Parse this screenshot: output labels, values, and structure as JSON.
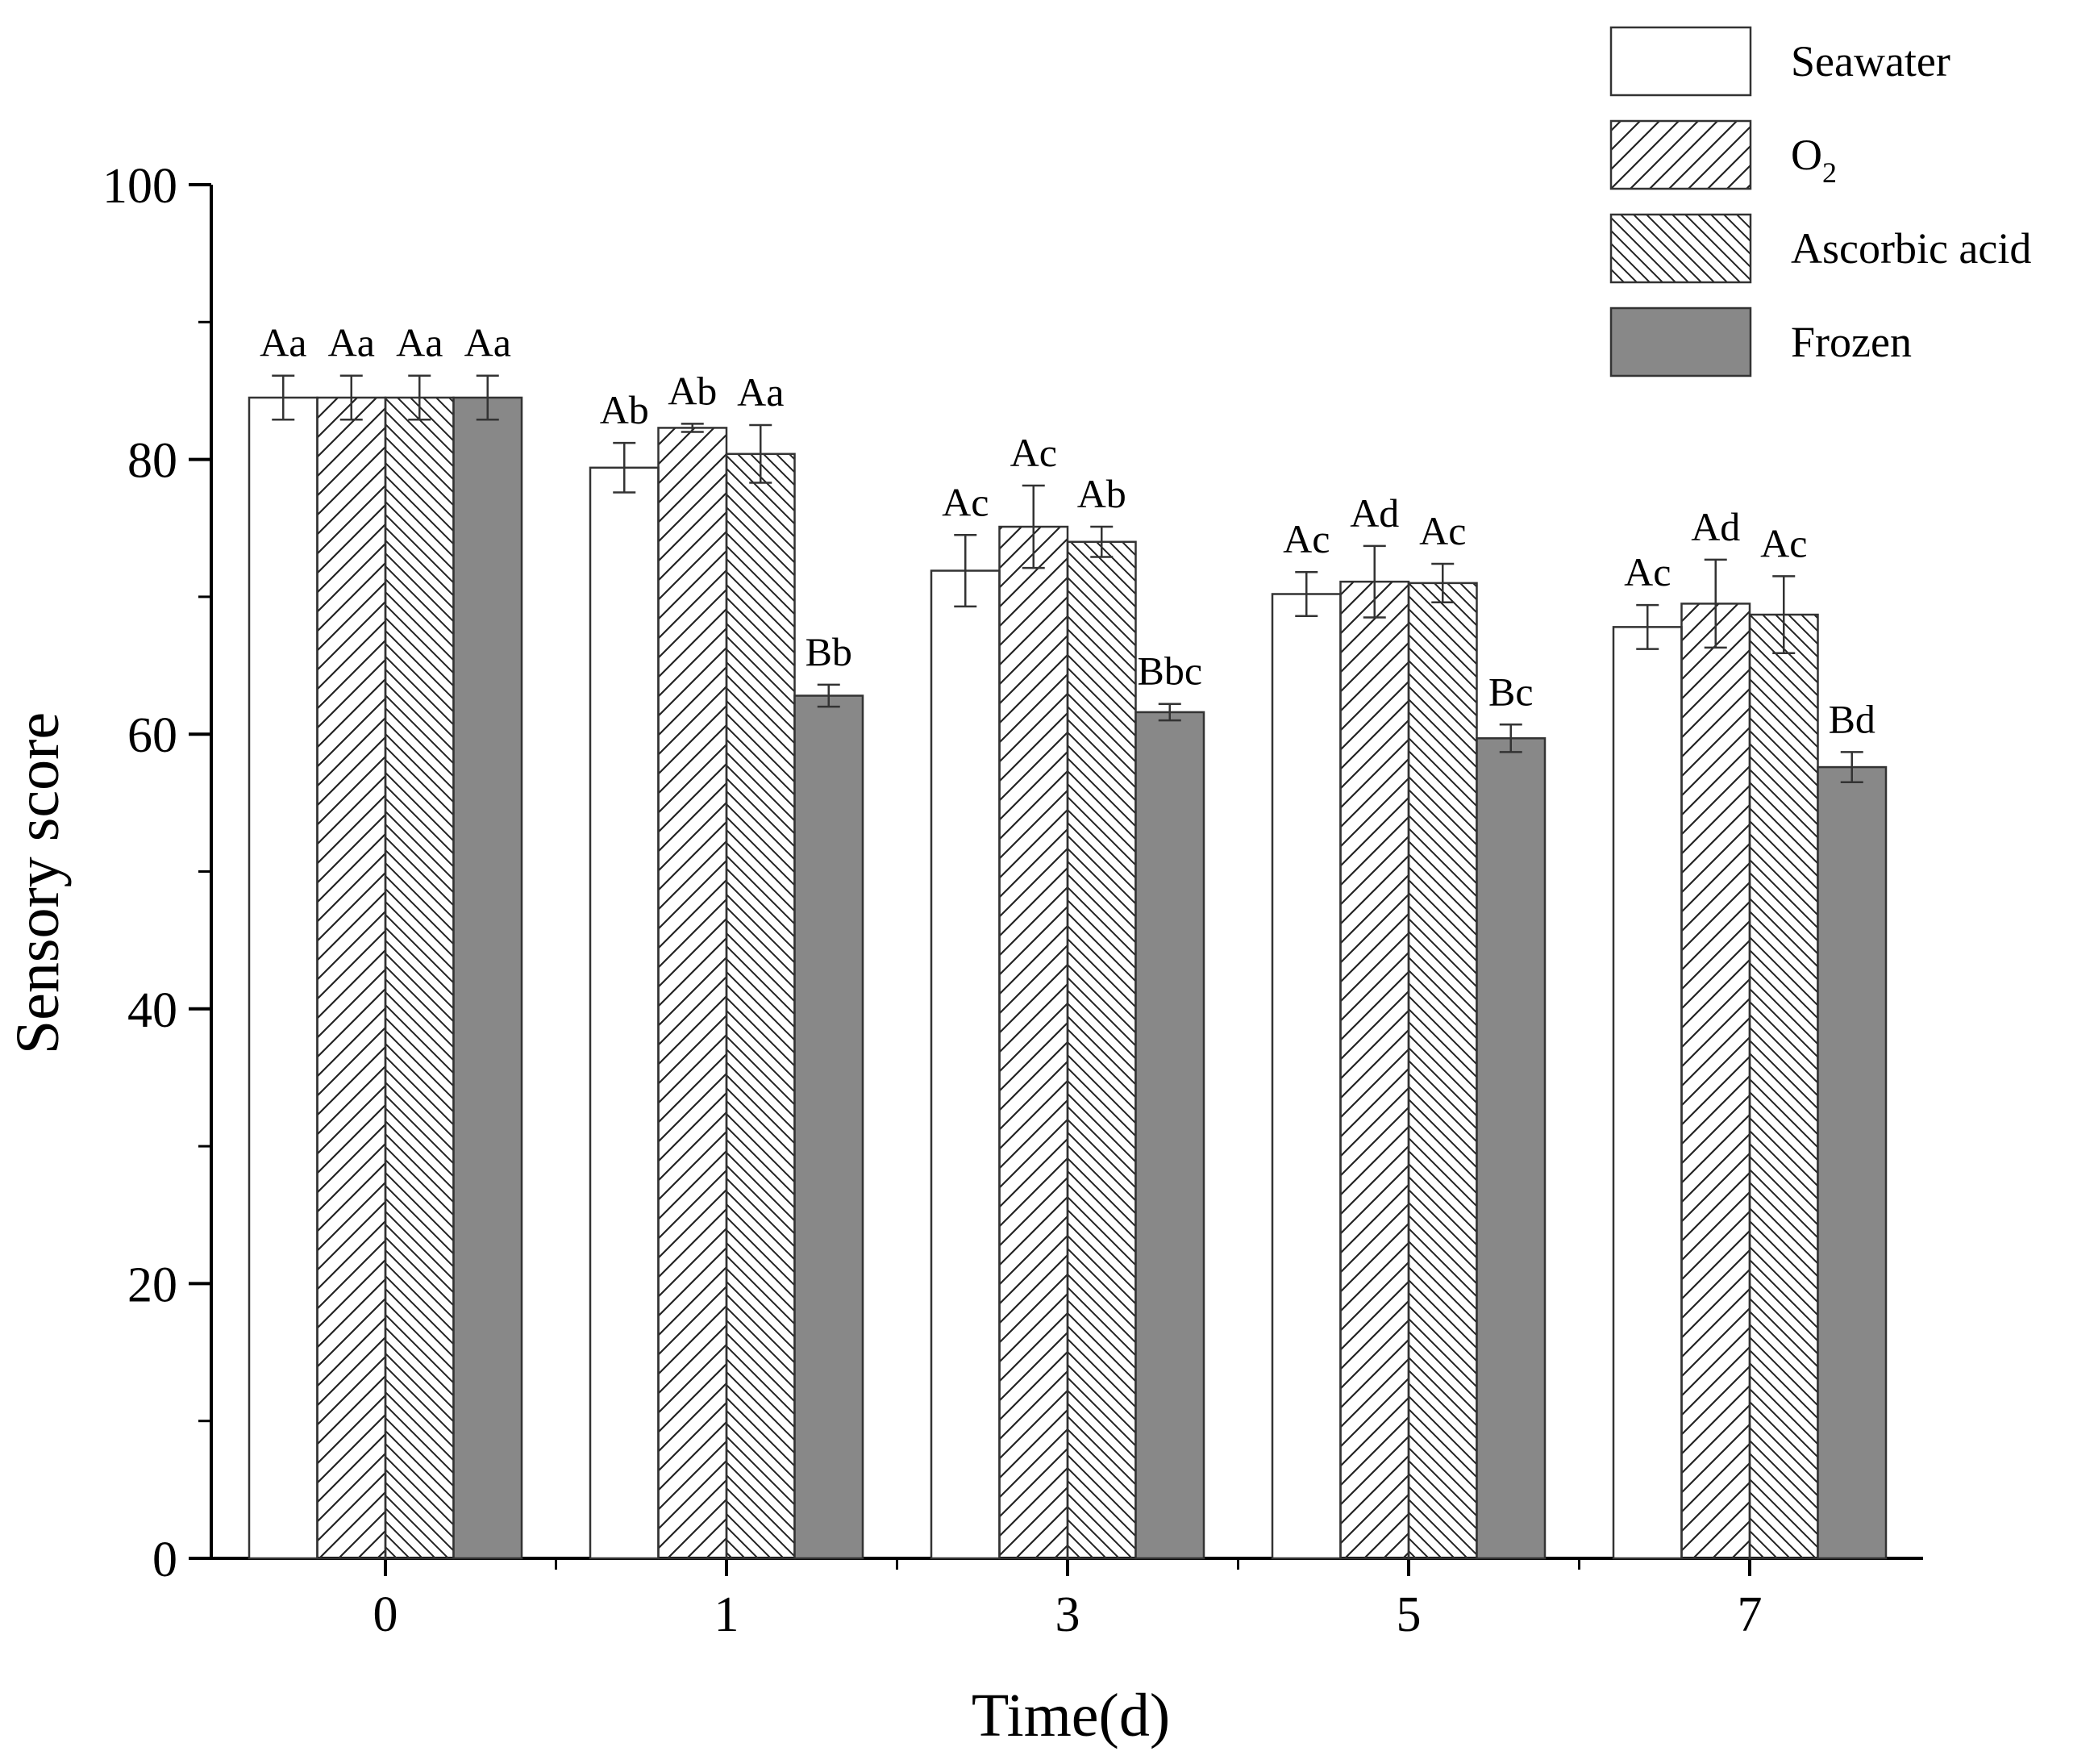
{
  "chart_data": {
    "type": "bar",
    "title": "",
    "xlabel": "Time(d)",
    "ylabel": "Sensory score",
    "ylim": [
      0,
      100
    ],
    "yticks": [
      0,
      20,
      40,
      60,
      80,
      100
    ],
    "grid": false,
    "legend_position": "top-right",
    "categories": [
      "0",
      "1",
      "3",
      "5",
      "7"
    ],
    "series": [
      {
        "name": "Seawater",
        "name_sub": "",
        "pattern": "white",
        "values": [
          84.5,
          79.4,
          71.9,
          70.2,
          67.8
        ],
        "errors": [
          1.6,
          1.8,
          2.6,
          1.6,
          1.6
        ],
        "labels": [
          "Aa",
          "Ab",
          "Ac",
          "Ac",
          "Ac"
        ]
      },
      {
        "name": "O",
        "name_sub": "2",
        "pattern": "hatch-right",
        "values": [
          84.5,
          82.3,
          75.1,
          71.1,
          69.5
        ],
        "errors": [
          1.6,
          0.3,
          3.0,
          2.6,
          3.2
        ],
        "labels": [
          "Aa",
          "Ab",
          "Ac",
          "Ad",
          "Ad"
        ]
      },
      {
        "name": "Ascorbic acid",
        "name_sub": "",
        "pattern": "hatch-left",
        "values": [
          84.5,
          80.4,
          74.0,
          71.0,
          68.7
        ],
        "errors": [
          1.6,
          2.1,
          1.1,
          1.4,
          2.8
        ],
        "labels": [
          "Aa",
          "Aa",
          "Ab",
          "Ac",
          "Ac"
        ]
      },
      {
        "name": "Frozen",
        "name_sub": "",
        "pattern": "gray",
        "values": [
          84.5,
          62.8,
          61.6,
          59.7,
          57.6
        ],
        "errors": [
          1.6,
          0.8,
          0.6,
          1.0,
          1.1
        ],
        "labels": [
          "Aa",
          "Bb",
          "Bbc",
          "Bc",
          "Bd"
        ]
      }
    ]
  },
  "colors": {
    "axis": "#000000",
    "bar_border": "#333333",
    "error_bar": "#333333",
    "hatch": "#222222",
    "frozen_fill": "#888888",
    "legend_border": "#333333"
  }
}
